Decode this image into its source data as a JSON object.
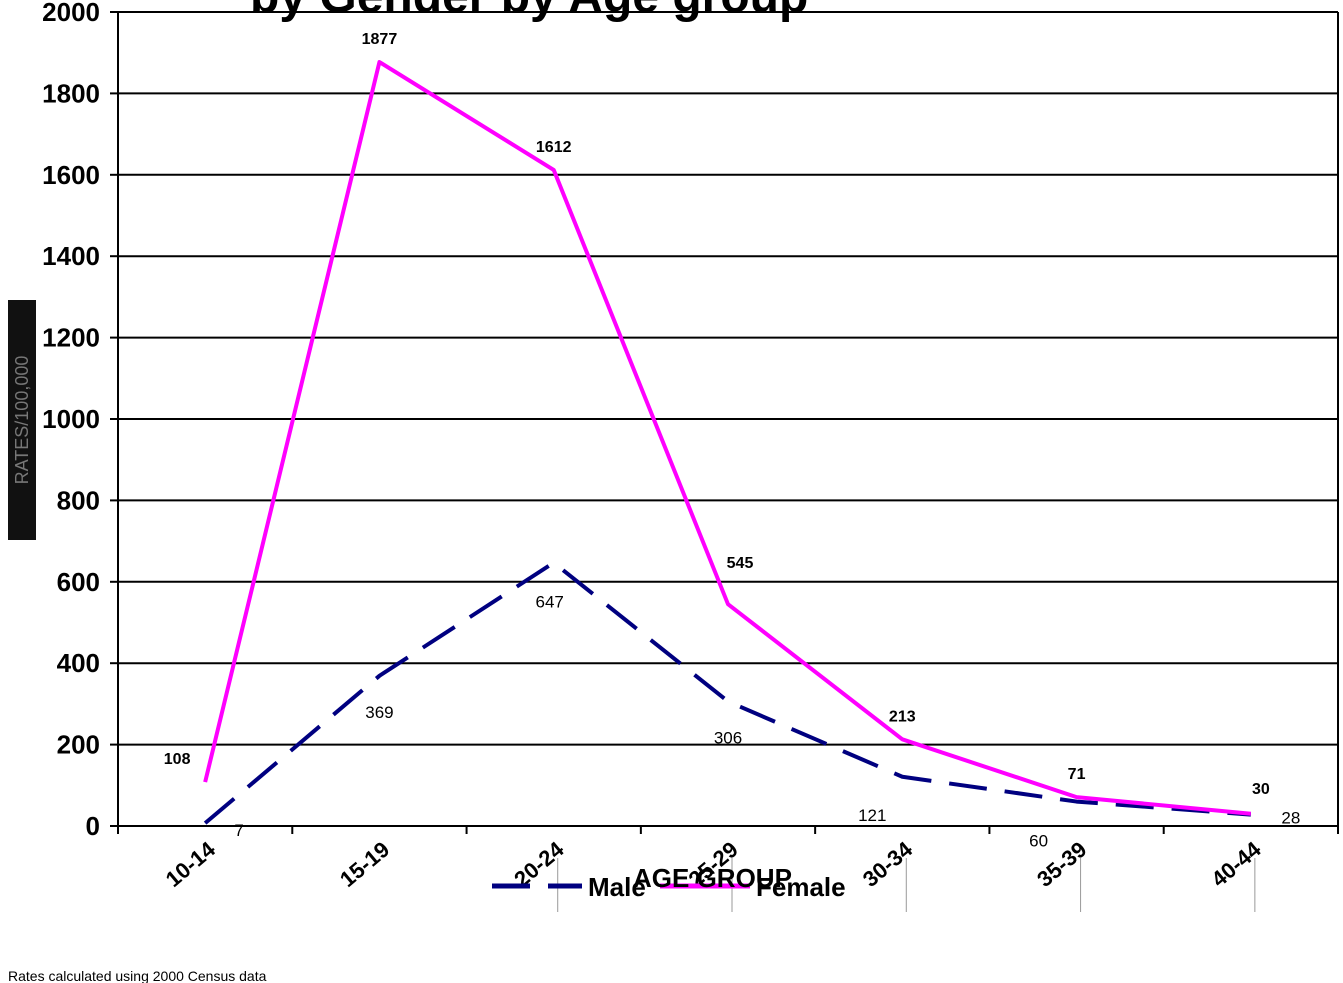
{
  "chart_data": {
    "type": "line",
    "title": "by Gender by Age group",
    "xlabel": "AGE GROUP",
    "ylabel": "RATES/100,000",
    "categories": [
      "10-14",
      "15-19",
      "20-24",
      "25-29",
      "30-34",
      "35-39",
      "40-44"
    ],
    "ylim": [
      0,
      2000
    ],
    "yticks": [
      0,
      200,
      400,
      600,
      800,
      1000,
      1200,
      1400,
      1600,
      1800,
      2000
    ],
    "grid": true,
    "legend_position": "bottom",
    "series": [
      {
        "name": "Male",
        "values": [
          7,
          369,
          647,
          306,
          121,
          60,
          28
        ],
        "color": "#000080",
        "dash": "dashed"
      },
      {
        "name": "Female",
        "values": [
          108,
          1877,
          1612,
          545,
          213,
          71,
          30
        ],
        "color": "#FF00FF",
        "dash": "solid"
      }
    ],
    "footnote": "Rates calculated using 2000 Census data"
  }
}
